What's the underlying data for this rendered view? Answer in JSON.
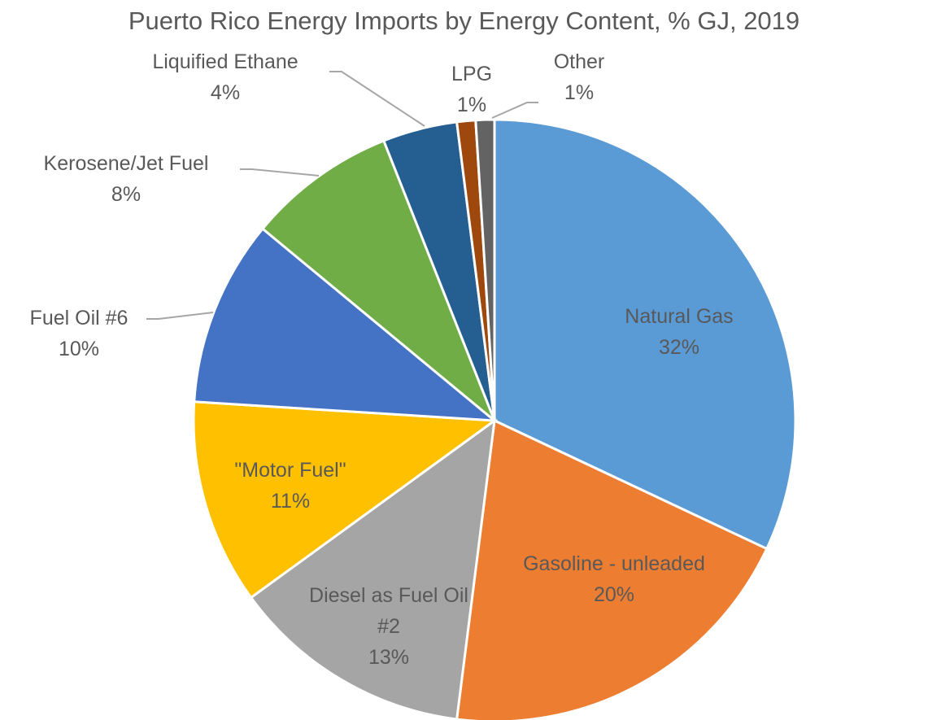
{
  "chart_data": {
    "type": "pie",
    "title": "Puerto Rico Energy Imports by Energy Content, % GJ, 2019",
    "categories": [
      "Natural Gas",
      "Gasoline - unleaded",
      "Diesel as Fuel Oil #2",
      "\"Motor Fuel\"",
      "Fuel Oil #6",
      "Kerosene/Jet Fuel",
      "Liquified Ethane",
      "LPG",
      "Other"
    ],
    "values": [
      32,
      20,
      13,
      11,
      10,
      8,
      4,
      1,
      1
    ],
    "value_labels": [
      "32%",
      "20%",
      "13%",
      "11%",
      "10%",
      "8%",
      "4%",
      "1%",
      "1%"
    ],
    "colors": [
      "#5b9bd5",
      "#ed7d31",
      "#a5a5a5",
      "#ffc000",
      "#4472c4",
      "#70ad47",
      "#255e91",
      "#9e480e",
      "#636363"
    ]
  }
}
